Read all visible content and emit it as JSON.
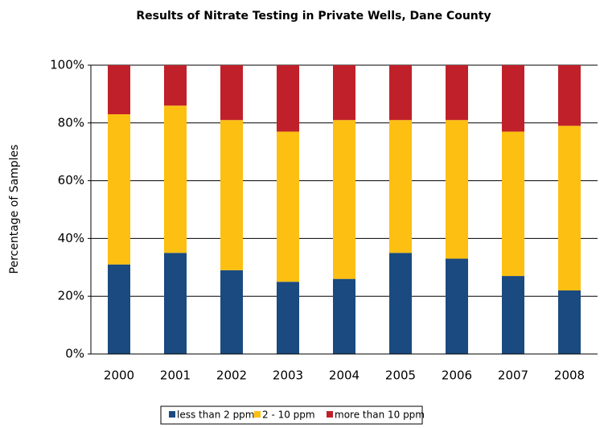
{
  "chart_data": {
    "type": "stacked_bar",
    "title": "Results of Nitrate Testing in Private Wells, Dane County",
    "y_label": "Percentage of Samples",
    "categories": [
      "2000",
      "2001",
      "2002",
      "2003",
      "2004",
      "2005",
      "2006",
      "2007",
      "2008"
    ],
    "series": [
      {
        "name": "less than 2 ppm",
        "color": "#1a4a7f",
        "values": [
          31,
          35,
          29,
          25,
          26,
          35,
          33,
          27,
          22
        ]
      },
      {
        "name": "2 - 10 ppm",
        "color": "#fcbf12",
        "values": [
          52,
          51,
          52,
          52,
          55,
          46,
          48,
          50,
          57
        ]
      },
      {
        "name": "more than 10 ppm",
        "color": "#c0202a",
        "values": [
          17,
          14,
          19,
          23,
          19,
          19,
          19,
          23,
          21
        ]
      }
    ],
    "ylim": [
      0,
      100
    ],
    "yticks": [
      {
        "value": 0,
        "label": "0%"
      },
      {
        "value": 20,
        "label": "20%"
      },
      {
        "value": 40,
        "label": "40%"
      },
      {
        "value": 60,
        "label": "60%"
      },
      {
        "value": 80,
        "label": "80%"
      },
      {
        "value": 100,
        "label": "100%"
      }
    ],
    "grid": true,
    "legend": "bottom"
  }
}
